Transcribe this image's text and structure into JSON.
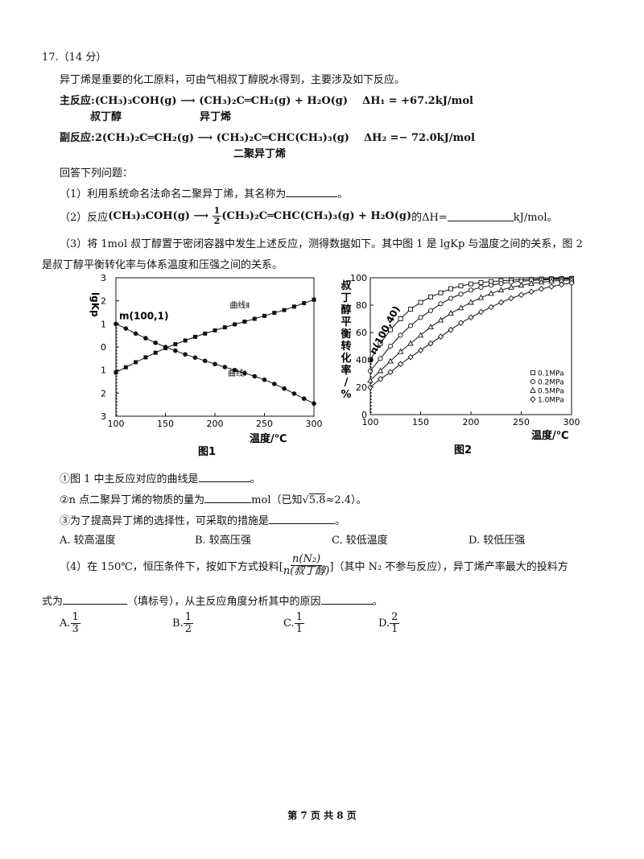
{
  "question": {
    "number": "17.（14 分）",
    "intro": "异丁烯是重要的化工原料，可由气相叔丁醇脱水得到，主要涉及如下反应。",
    "main_reaction": {
      "label": "主反应:",
      "reactant": "(CH₃)₃COH(g)",
      "products": "(CH₃)₂C═CH₂(g)  +  H₂O(g)",
      "dh": "ΔH₁ = +67.2kJ/mol",
      "reactant_name": "叔丁醇",
      "product_name": "异丁烯"
    },
    "side_reaction": {
      "label": "副反应:",
      "reactant": "2(CH₃)₂C═CH₂(g)",
      "products": "(CH₃)₂C═CHC(CH₃)₃(g)",
      "dh": "ΔH₂ =− 72.0kJ/mol",
      "product_name": "二聚异丁烯"
    },
    "answer_prompt": "回答下列问题：",
    "q1": "（1）利用系统命名法命名二聚异丁烯，其名称为",
    "q1_end": "。",
    "q2_prefix": "（2）反应",
    "q2_reactant": "(CH₃)₃COH(g)",
    "q2_coef_num": "1",
    "q2_coef_den": "2",
    "q2_products": "(CH₃)₂C═CHC(CH₃)₃(g)  +  H₂O(g)",
    "q2_suffix": "的ΔH=",
    "q2_unit": "kJ/mol。",
    "q3_line1": "（3）将 1mol 叔丁醇置于密闭容器中发生上述反应，测得数据如下。其中图 1 是 lgKp 与温度之间的关系，图 2",
    "q3_line2": "是叔丁醇平衡转化率与体系温度和压强之间的关系。",
    "q3_1": "①图 1 中主反应对应的曲线是",
    "q3_1_end": "。",
    "q3_2": "②n 点二聚异丁烯的物质的量为",
    "q3_2_mid": "mol（已知",
    "q3_2_sqrt": "5.8",
    "q3_2_end": "≈2.4）。",
    "q3_3": "③为了提高异丁烯的选择性，可采取的措施是",
    "q3_3_end": "。",
    "q3_options": [
      "A. 较高温度",
      "B. 较高压强",
      "C. 较低温度",
      "D. 较低压强"
    ],
    "q4_prefix": "（4）在 150℃，恒压条件下，按如下方式投料[",
    "q4_frac_num": "n(N₂)",
    "q4_frac_den": "n(叔丁醇)",
    "q4_suffix": "]（其中 N₂ 不参与反应），异丁烯产率最大的投料方",
    "q4_line2a": "式为",
    "q4_line2b": "（填标号），从主反应角度分析其中的原因",
    "q4_line2c": "。",
    "q4_options": [
      {
        "label": "A.",
        "num": "1",
        "den": "3"
      },
      {
        "label": "B.",
        "num": "1",
        "den": "2"
      },
      {
        "label": "C.",
        "num": "1",
        "den": "1"
      },
      {
        "label": "D.",
        "num": "2",
        "den": "1"
      }
    ],
    "footer": "第 7 页 共 8 页"
  },
  "chart_data": [
    {
      "type": "line",
      "title": "图1",
      "xlabel": "温度/℃",
      "ylabel": "lgKp",
      "xlim": [
        100,
        300
      ],
      "ylim": [
        -3,
        3
      ],
      "xticks": [
        100,
        150,
        200,
        250,
        300
      ],
      "yticks": [
        3,
        2,
        1,
        0,
        -1,
        -2,
        -3
      ],
      "ytick_labels": [
        "3",
        "2",
        "1",
        "0",
        "1",
        "2",
        "3"
      ],
      "annotation": {
        "text": "m(100,1)",
        "x": 100,
        "y": 1
      },
      "series": [
        {
          "name": "曲线Ⅱ",
          "marker": "square",
          "x": [
            100,
            110,
            120,
            130,
            140,
            150,
            160,
            170,
            180,
            190,
            200,
            210,
            220,
            230,
            240,
            250,
            260,
            270,
            280,
            290,
            300
          ],
          "y": [
            -1.1,
            -0.88,
            -0.66,
            -0.45,
            -0.25,
            -0.05,
            0.12,
            0.28,
            0.44,
            0.58,
            0.72,
            0.85,
            0.98,
            1.1,
            1.22,
            1.35,
            1.48,
            1.6,
            1.75,
            1.9,
            2.05
          ]
        },
        {
          "name": "曲线Ⅰ",
          "marker": "circle",
          "x": [
            100,
            110,
            120,
            130,
            140,
            150,
            160,
            170,
            180,
            190,
            200,
            210,
            220,
            230,
            240,
            250,
            260,
            270,
            280,
            290,
            300
          ],
          "y": [
            1.0,
            0.8,
            0.58,
            0.38,
            0.18,
            0.0,
            -0.16,
            -0.32,
            -0.46,
            -0.6,
            -0.74,
            -0.87,
            -1.0,
            -1.13,
            -1.27,
            -1.42,
            -1.6,
            -1.8,
            -2.02,
            -2.24,
            -2.45
          ]
        }
      ]
    },
    {
      "type": "line",
      "title": "图2",
      "xlabel": "温度/℃",
      "ylabel": "叔丁醇平衡转化率/%",
      "xlim": [
        100,
        300
      ],
      "ylim": [
        0,
        100
      ],
      "xticks": [
        100,
        150,
        200,
        250,
        300
      ],
      "yticks": [
        0,
        20,
        40,
        60,
        80,
        100
      ],
      "annotation": {
        "text": "n(100,40)",
        "x": 100,
        "y": 40
      },
      "legend_position": "bottom-right",
      "series": [
        {
          "name": "0.1MPa",
          "marker": "square",
          "x": [
            100,
            110,
            120,
            130,
            140,
            150,
            160,
            170,
            180,
            190,
            200,
            210,
            220,
            230,
            240,
            250,
            260,
            270,
            280,
            290,
            300
          ],
          "y": [
            40,
            52,
            62,
            70,
            77,
            82,
            86,
            89,
            92,
            94,
            95.5,
            96.5,
            97.2,
            97.8,
            98.2,
            98.6,
            98.9,
            99.1,
            99.3,
            99.5,
            99.6
          ]
        },
        {
          "name": "0.2MPa",
          "marker": "circle",
          "x": [
            100,
            110,
            120,
            130,
            140,
            150,
            160,
            170,
            180,
            190,
            200,
            210,
            220,
            230,
            240,
            250,
            260,
            270,
            280,
            290,
            300
          ],
          "y": [
            32,
            41,
            50,
            58,
            65,
            71,
            76,
            81,
            85,
            88,
            91,
            93,
            94.5,
            95.8,
            96.8,
            97.5,
            98,
            98.4,
            98.7,
            99,
            99.2
          ]
        },
        {
          "name": "0.5MPa",
          "marker": "triangle",
          "x": [
            100,
            110,
            120,
            130,
            140,
            150,
            160,
            170,
            180,
            190,
            200,
            210,
            220,
            230,
            240,
            250,
            260,
            270,
            280,
            290,
            300
          ],
          "y": [
            25,
            32,
            39,
            46,
            52,
            58,
            64,
            69,
            74,
            78,
            82,
            85.5,
            88.5,
            91,
            93,
            94.5,
            95.8,
            96.8,
            97.5,
            98,
            98.4
          ]
        },
        {
          "name": "1.0MPa",
          "marker": "diamond",
          "x": [
            100,
            110,
            120,
            130,
            140,
            150,
            160,
            170,
            180,
            190,
            200,
            210,
            220,
            230,
            240,
            250,
            260,
            270,
            280,
            290,
            300
          ],
          "y": [
            20,
            26,
            31,
            37,
            42,
            47,
            52,
            57,
            62,
            67,
            71,
            75,
            78.5,
            82,
            85,
            87.5,
            89.8,
            91.8,
            93.5,
            95,
            96.2
          ]
        }
      ]
    }
  ]
}
